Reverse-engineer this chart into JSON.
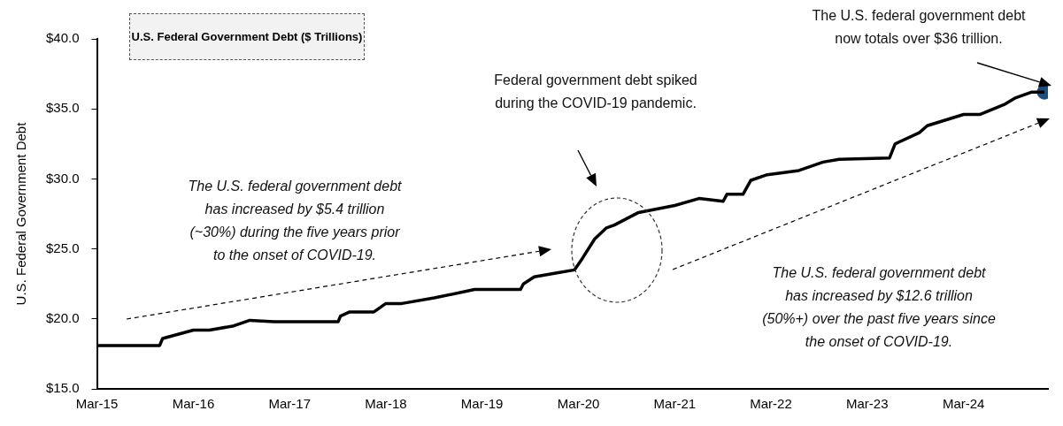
{
  "chart_data": {
    "type": "line",
    "title": "U.S. Federal Government Debt ($ Trillions)",
    "ylabel": "U.S. Federal Government Debt",
    "xlim": [
      "2015-03-01",
      "2025-01-15"
    ],
    "xticks": [
      {
        "value": "2015-03",
        "label": "Mar-15"
      },
      {
        "value": "2016-03",
        "label": "Mar-16"
      },
      {
        "value": "2017-03",
        "label": "Mar-17"
      },
      {
        "value": "2018-03",
        "label": "Mar-18"
      },
      {
        "value": "2019-03",
        "label": "Mar-19"
      },
      {
        "value": "2020-03",
        "label": "Mar-20"
      },
      {
        "value": "2021-03",
        "label": "Mar-21"
      },
      {
        "value": "2022-03",
        "label": "Mar-22"
      },
      {
        "value": "2023-03",
        "label": "Mar-23"
      },
      {
        "value": "2024-03",
        "label": "Mar-24"
      }
    ],
    "ylim": [
      15,
      40
    ],
    "yticks": [
      {
        "value": 15,
        "label": "$15.0"
      },
      {
        "value": 20,
        "label": "$20.0"
      },
      {
        "value": 25,
        "label": "$25.0"
      },
      {
        "value": 30,
        "label": "$30.0"
      },
      {
        "value": 35,
        "label": "$35.0"
      },
      {
        "value": 40,
        "label": "$40.0"
      }
    ],
    "grid": false,
    "legend": false,
    "line_style": "solid",
    "series": [
      {
        "type": "line",
        "color": "#000000",
        "x": [
          "2015-03-01",
          "2015-10-25",
          "2015-11-05",
          "2015-12-15",
          "2016-03-01",
          "2016-05-01",
          "2016-08-01",
          "2016-10-01",
          "2017-01-01",
          "2017-09-01",
          "2017-09-10",
          "2017-10-15",
          "2018-01-15",
          "2018-03-01",
          "2018-05-01",
          "2018-09-01",
          "2019-02-01",
          "2019-07-25",
          "2019-08-05",
          "2019-09-15",
          "2019-12-15",
          "2020-02-15",
          "2020-03-15",
          "2020-05-01",
          "2020-06-15",
          "2020-07-15",
          "2020-10-15",
          "2021-03-01",
          "2021-06-01",
          "2021-09-01",
          "2021-09-15",
          "2021-11-15",
          "2021-12-15",
          "2022-02-15",
          "2022-06-15",
          "2022-09-15",
          "2022-11-15",
          "2023-05-25",
          "2023-06-15",
          "2023-09-15",
          "2023-10-15",
          "2024-03-01",
          "2024-05-01",
          "2024-08-01",
          "2024-09-15",
          "2024-11-15",
          "2025-01-01"
        ],
        "values": [
          18.1,
          18.1,
          18.6,
          18.8,
          19.2,
          19.2,
          19.5,
          19.9,
          19.8,
          19.8,
          20.2,
          20.5,
          20.5,
          21.1,
          21.1,
          21.5,
          22.1,
          22.1,
          22.5,
          23.0,
          23.3,
          23.5,
          24.3,
          25.7,
          26.5,
          26.7,
          27.6,
          28.1,
          28.6,
          28.4,
          28.9,
          28.9,
          29.9,
          30.3,
          30.6,
          31.2,
          31.4,
          31.5,
          32.5,
          33.3,
          33.8,
          34.6,
          34.6,
          35.3,
          35.8,
          36.2,
          36.2
        ]
      },
      {
        "type": "scatter",
        "color": "#1f4e79",
        "marker": "circle",
        "x": [
          "2025-01-01"
        ],
        "values": [
          36.2
        ]
      }
    ],
    "annotations": [
      "Federal government debt spiked\nduring the COVID-19 pandemic.",
      "The U.S. federal government debt\nhas increased by $5.4 trillion\n(~30%) during the five years prior\nto the onset of COVID-19.",
      "The U.S. federal government debt\nhas increased by $12.6 trillion\n(50%+) over the past five years since\nthe onset of COVID-19.",
      "The U.S. federal government debt\nnow totals over $36 trillion."
    ]
  }
}
